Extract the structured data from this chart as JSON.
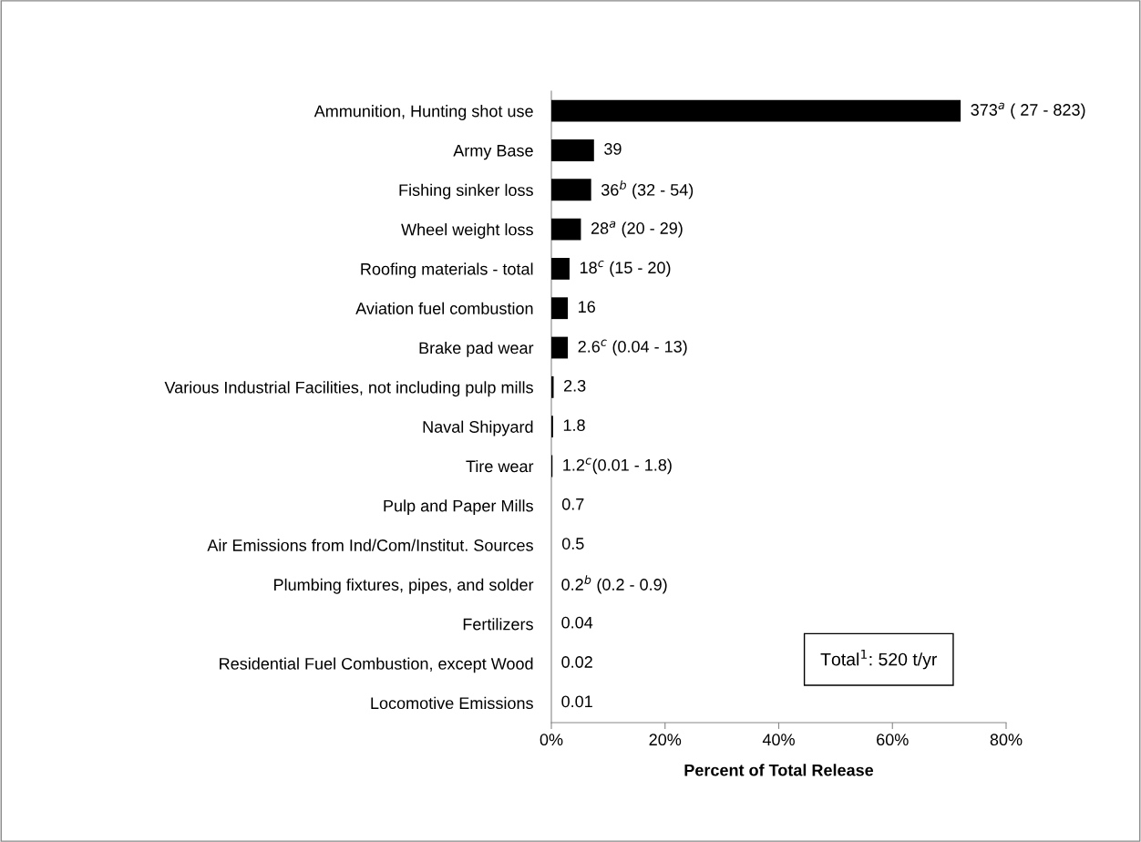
{
  "chart_data": {
    "type": "bar",
    "orientation": "horizontal",
    "xlabel": "Percent of Total Release",
    "categories": [
      "Ammunition, Hunting shot use",
      "Army Base",
      "Fishing sinker loss",
      "Wheel weight loss",
      "Roofing materials - total",
      "Aviation fuel combustion",
      "Brake pad wear",
      "Various Industrial Facilities, not including pulp mills",
      "Naval Shipyard",
      "Tire wear",
      "Pulp and Paper Mills",
      "Air Emissions from Ind/Com/Institut. Sources",
      "Plumbing fixtures, pipes, and solder",
      "Fertilizers",
      "Residential Fuel Combustion, except Wood",
      "Locomotive Emissions"
    ],
    "values": [
      72,
      7.5,
      7,
      5.2,
      3.2,
      2.9,
      2.9,
      0.4,
      0.3,
      0.2,
      0,
      0,
      0,
      0,
      0,
      0
    ],
    "color": "#000000",
    "xlim": [
      0,
      80
    ],
    "xticks": [
      {
        "value": 0,
        "label": "0%"
      },
      {
        "value": 20,
        "label": "20%"
      },
      {
        "value": 40,
        "label": "40%"
      },
      {
        "value": 60,
        "label": "60%"
      },
      {
        "value": 80,
        "label": "80%"
      }
    ],
    "annotations": [
      {
        "text": "373$^{a}$ ( 27 - 823)",
        "x": 72,
        "y": "Ammunition, Hunting shot use"
      },
      {
        "text": "39",
        "x": 7.5,
        "y": "Army Base"
      },
      {
        "text": "36$^{b}$ (32 - 54)",
        "x": 7,
        "y": "Fishing sinker loss"
      },
      {
        "text": "28$^{a}$ (20 - 29)",
        "x": 5.2,
        "y": "Wheel weight loss"
      },
      {
        "text": "18$^{c}$ (15 - 20)",
        "x": 3.2,
        "y": "Roofing materials - total"
      },
      {
        "text": "16",
        "x": 2.9,
        "y": "Aviation fuel combustion"
      },
      {
        "text": "2.6$^{c}$ (0.04 - 13)",
        "x": 2.9,
        "y": "Brake pad wear"
      },
      {
        "text": "2.3",
        "x": 0.4,
        "y": "Various Industrial Facilities, not including pulp mills"
      },
      {
        "text": "1.8",
        "x": 0.3,
        "y": "Naval Shipyard"
      },
      {
        "text": "1.2$^{c}$(0.01 - 1.8)",
        "x": 0.2,
        "y": "Tire wear"
      },
      {
        "text": "0.7",
        "x": 0.1,
        "y": "Pulp and Paper Mills"
      },
      {
        "text": "0.5",
        "x": 0.1,
        "y": "Air Emissions from Ind/Com/Institut. Sources"
      },
      {
        "text": "0.2$^{b}$ (0.2 - 0.9)",
        "x": 0,
        "y": "Plumbing fixtures, pipes, and solder"
      },
      {
        "text": "0.04",
        "x": 0,
        "y": "Fertilizers"
      },
      {
        "text": "0.02",
        "x": 0,
        "y": "Residential Fuel Combustion, except Wood"
      },
      {
        "text": "0.01",
        "x": 0,
        "y": "Locomotive Emissions"
      },
      "Total$^{1}$: 520 t/yr"
    ],
    "grid": false,
    "legend": false
  }
}
